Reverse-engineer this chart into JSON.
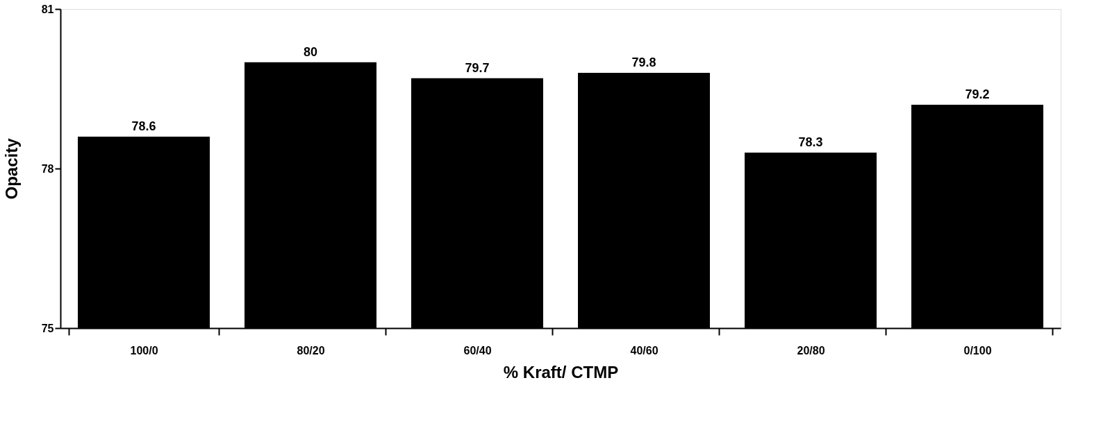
{
  "chart_data": {
    "type": "bar",
    "xlabel": "% Kraft/ CTMP",
    "ylabel": "Opacity",
    "categories": [
      "100/0",
      "80/20",
      "60/40",
      "40/60",
      "20/80",
      "0/100"
    ],
    "values": [
      78.6,
      80,
      79.7,
      79.8,
      78.3,
      79.2
    ],
    "color": "#000000",
    "ylim": [
      75,
      81
    ],
    "yticks": [
      75,
      78,
      81
    ],
    "grid": false,
    "data_labels": true
  }
}
